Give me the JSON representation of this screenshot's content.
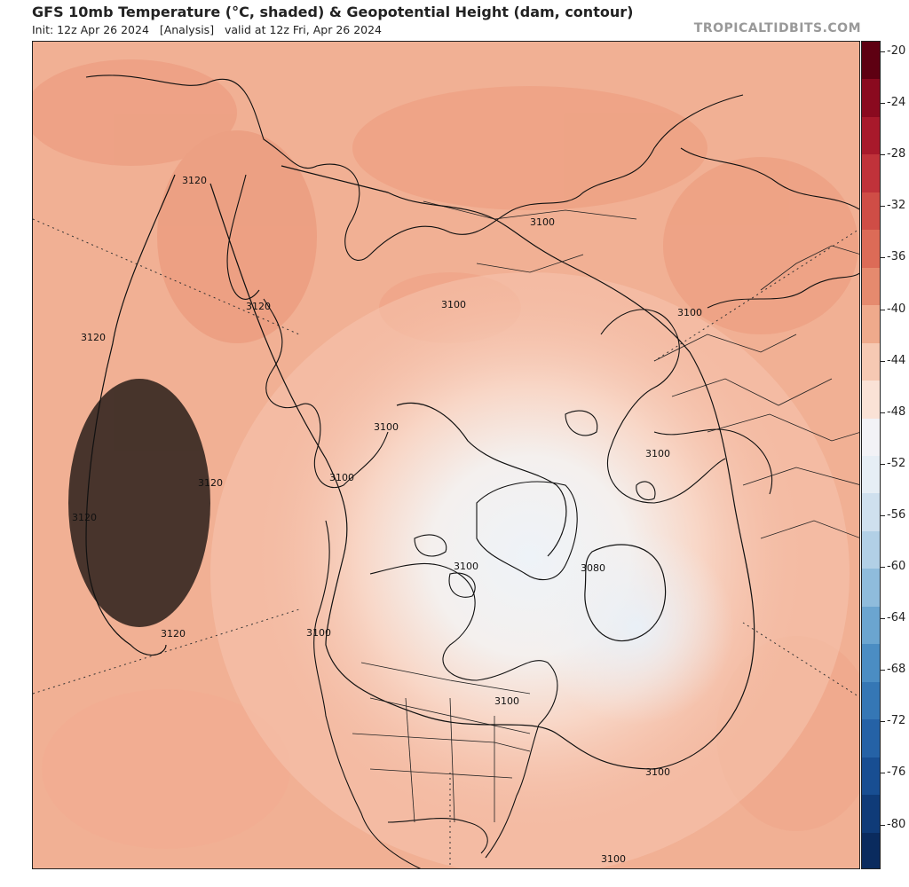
{
  "header": {
    "title": "GFS 10mb Temperature (°C, shaded) & Geopotential Height (dam, contour)",
    "subtitle": "Init: 12z Apr 26 2024   [Analysis]   valid at 12z Fri, Apr 26 2024",
    "brand": "TROPICALTIDBITS.COM"
  },
  "map": {
    "projection": "polar stereographic (north pole)",
    "contour_labels": [
      "3120",
      "3120",
      "3120",
      "3120",
      "3120",
      "3120",
      "3100",
      "3100",
      "3100",
      "3100",
      "3100",
      "3100",
      "3100",
      "3100",
      "3100",
      "3100",
      "3100",
      "3080"
    ]
  },
  "colorbar": {
    "labels": [
      "-20",
      "-24",
      "-28",
      "-32",
      "-36",
      "-40",
      "-44",
      "-48",
      "-52",
      "-56",
      "-60",
      "-64",
      "-68",
      "-72",
      "-76",
      "-80"
    ],
    "colors": [
      "#5e0012",
      "#8a0a1f",
      "#a8192b",
      "#c0323a",
      "#cf4d46",
      "#dc6b57",
      "#e58a6e",
      "#efaa8c",
      "#f6c9b3",
      "#fae2d6",
      "#f2f2f6",
      "#e6eef5",
      "#cfe0ee",
      "#b2d0e6",
      "#8fbcdc",
      "#6ba5d0",
      "#4b8dc3",
      "#3577b5",
      "#2562a6",
      "#184e92",
      "#0f3b78",
      "#0a2b5e"
    ]
  }
}
